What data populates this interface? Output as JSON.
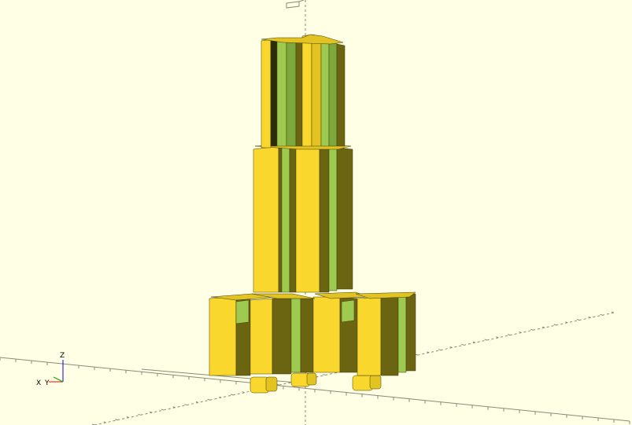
{
  "viewport": {
    "background": "#ffffe5",
    "colors": {
      "face_light": "#f9d72c",
      "face_mid": "#e2c321",
      "face_dark": "#6b6411",
      "face_shadow": "#3f3d0f",
      "face_green": "#9fca50",
      "face_green_dark": "#7da83c",
      "face_black": "#2d2d0c",
      "axis_line": "#8a8a7a"
    }
  },
  "axes_gizmo": {
    "x_label": "X",
    "y_label": "Y",
    "z_label": "Z",
    "x_color": "#ff0000",
    "y_color": "#00aa00",
    "z_color": "#0000ff"
  },
  "model": {
    "icon": "tower-3d-model-icon",
    "parts": [
      "tower-top",
      "tower-middle",
      "tower-base",
      "tower-feet"
    ]
  }
}
